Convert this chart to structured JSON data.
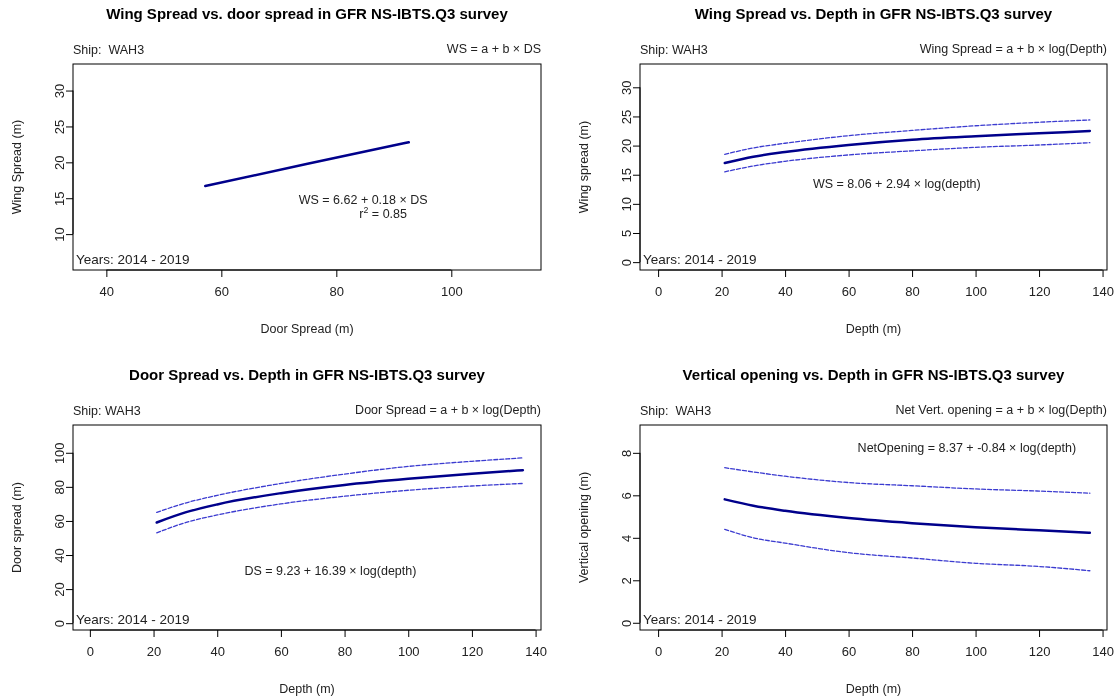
{
  "chart_data": [
    {
      "type": "line",
      "title": "Wing Spread vs. door spread in GFR NS-IBTS.Q3 survey",
      "xlabel": "Door Spread (m)",
      "ylabel": "Wing Spread (m)",
      "annotations": [
        "Ship:  WAH3",
        "WS = a + b × DS",
        "WS = 6.62 + 0.18 × DS",
        "r$^{2}$ = 0.85",
        "Years: 2014 - 2019"
      ],
      "xlim": [
        34.2,
        115.6
      ],
      "xticks": [
        40,
        60,
        80,
        100
      ],
      "ylim": [
        5,
        33.7
      ],
      "yticks": [
        10,
        15,
        20,
        25,
        30
      ],
      "series": [
        {
          "color": "#00008b",
          "line_style": "solid",
          "x": [
            57.2,
            75,
            92.6
          ],
          "values": [
            16.7,
            19.8,
            22.8
          ]
        }
      ]
    },
    {
      "type": "line",
      "title": "Wing Spread vs. Depth in GFR NS-IBTS.Q3 survey",
      "xlabel": "Depth (m)",
      "ylabel": "Wing spread (m)",
      "annotations": [
        "Ship: WAH3",
        "Wing Spread = a + b × log(Depth)",
        "WS = 8.06 + 2.94 × log(depth)",
        "Years: 2014 - 2019"
      ],
      "xlim": [
        -5.7,
        141.4
      ],
      "xticks": [
        0,
        20,
        40,
        60,
        80,
        100,
        120,
        140
      ],
      "ylim": [
        -1.35,
        34
      ],
      "yticks": [
        0,
        5,
        10,
        15,
        20,
        25,
        30
      ],
      "series": [
        {
          "color": "#00008b",
          "line_style": "solid",
          "x": [
            21,
            30,
            40,
            60,
            80,
            100,
            120,
            136
          ],
          "values": [
            17.0,
            18.1,
            18.9,
            20.1,
            21.0,
            21.6,
            22.1,
            22.5
          ]
        },
        {
          "color": "#3b3bd0",
          "line_style": "dashed",
          "x": [
            21,
            30,
            40,
            60,
            80,
            100,
            120,
            136
          ],
          "values": [
            18.5,
            19.6,
            20.4,
            21.7,
            22.6,
            23.4,
            24.0,
            24.4
          ]
        },
        {
          "color": "#3b3bd0",
          "line_style": "dashed",
          "x": [
            21,
            30,
            40,
            60,
            80,
            100,
            120,
            136
          ],
          "values": [
            15.5,
            16.5,
            17.3,
            18.4,
            19.1,
            19.7,
            20.1,
            20.5
          ]
        }
      ]
    },
    {
      "type": "line",
      "title": "Door Spread vs. Depth in GFR NS-IBTS.Q3 survey",
      "xlabel": "Depth (m)",
      "ylabel": "Door spread (m)",
      "annotations": [
        "Ship: WAH3",
        "Door Spread = a + b × log(Depth)",
        "DS = 9.23 + 16.39 × log(depth)",
        "Years: 2014 - 2019"
      ],
      "xlim": [
        -5.3,
        141.7
      ],
      "xticks": [
        0,
        20,
        40,
        60,
        80,
        100,
        120,
        140
      ],
      "ylim": [
        -4,
        116.3
      ],
      "yticks": [
        0,
        20,
        40,
        60,
        80,
        100
      ],
      "series": [
        {
          "color": "#00008b",
          "line_style": "solid",
          "x": [
            21,
            30,
            40,
            60,
            80,
            100,
            120,
            136
          ],
          "values": [
            59.1,
            65.0,
            69.7,
            76.3,
            81.1,
            84.7,
            87.7,
            89.8
          ]
        },
        {
          "color": "#3b3bd0",
          "line_style": "dashed",
          "x": [
            21,
            30,
            40,
            60,
            80,
            100,
            120,
            136
          ],
          "values": [
            65,
            70.5,
            75,
            82,
            87.5,
            92,
            95,
            97
          ]
        },
        {
          "color": "#3b3bd0",
          "line_style": "dashed",
          "x": [
            21,
            30,
            40,
            60,
            80,
            100,
            120,
            136
          ],
          "values": [
            53,
            59,
            63.5,
            70,
            74.5,
            78,
            80.5,
            82
          ]
        }
      ]
    },
    {
      "type": "line",
      "title": "Vertical opening vs. Depth in GFR NS-IBTS.Q3 survey",
      "xlabel": "Depth (m)",
      "ylabel": "Vertical opening (m)",
      "annotations": [
        "Ship:  WAH3",
        "Net Vert. opening = a + b × log(Depth)",
        "NetOpening = 8.37 + -0.84 × log(depth)",
        "Years: 2014 - 2019"
      ],
      "xlim": [
        -5.7,
        141.4
      ],
      "xticks": [
        0,
        20,
        40,
        60,
        80,
        100,
        120,
        140
      ],
      "ylim": [
        -0.34,
        9.31
      ],
      "yticks": [
        0,
        2,
        4,
        6,
        8
      ],
      "series": [
        {
          "color": "#00008b",
          "line_style": "solid",
          "x": [
            21,
            30,
            40,
            60,
            80,
            100,
            120,
            136
          ],
          "values": [
            5.81,
            5.51,
            5.27,
            4.93,
            4.69,
            4.5,
            4.35,
            4.24
          ]
        },
        {
          "color": "#3b3bd0",
          "line_style": "dashed",
          "x": [
            21,
            30,
            40,
            60,
            80,
            100,
            120,
            136
          ],
          "values": [
            7.3,
            7.1,
            6.9,
            6.6,
            6.45,
            6.3,
            6.2,
            6.1
          ]
        },
        {
          "color": "#3b3bd0",
          "line_style": "dashed",
          "x": [
            21,
            30,
            40,
            60,
            80,
            100,
            120,
            136
          ],
          "values": [
            4.4,
            4.0,
            3.75,
            3.3,
            3.05,
            2.8,
            2.65,
            2.45
          ]
        }
      ]
    }
  ]
}
